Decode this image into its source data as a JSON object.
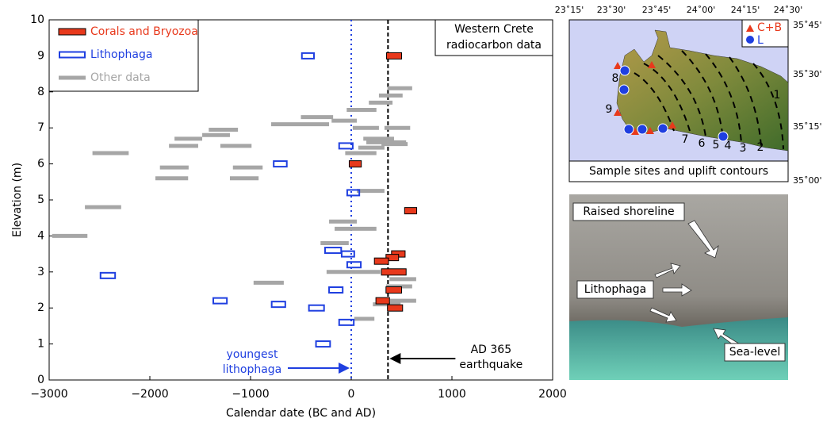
{
  "chart_data": {
    "type": "range",
    "title": [
      "Western Crete",
      "radiocarbon data"
    ],
    "x_label": "Calendar date (BC and AD)",
    "y_label": "Elevation (m)",
    "xlim": [
      -3000,
      2000
    ],
    "xticks": [
      {
        "value": -3000,
        "label": "−3000"
      },
      {
        "value": -2000,
        "label": "−2000"
      },
      {
        "value": -1000,
        "label": "−1000"
      },
      0,
      1000,
      2000
    ],
    "ylim": [
      0,
      10
    ],
    "yticks": [
      0,
      1,
      2,
      3,
      4,
      5,
      6,
      7,
      8,
      9,
      10
    ],
    "legend": "upper left",
    "series": [
      {
        "name": "Corals and Bryozoa",
        "color": "#e8391c",
        "style": "filled",
        "x_start": [
          350,
          -20,
          530,
          400,
          345,
          300,
          230,
          345,
          245,
          360
        ],
        "x_end": [
          500,
          100,
          650,
          535,
          470,
          545,
          370,
          500,
          380,
          510
        ],
        "values": [
          9.0,
          6.0,
          4.7,
          3.5,
          3.4,
          3.0,
          3.3,
          2.5,
          2.2,
          2.0
        ]
      },
      {
        "name": "Lithophaga",
        "color": "#1f3fe0",
        "style": "hollow",
        "x_start": [
          -490,
          -770,
          -120,
          -40,
          -260,
          -95,
          -40,
          -2490,
          -220,
          -1370,
          -790,
          -420,
          -120,
          -350
        ],
        "x_end": [
          -370,
          -640,
          15,
          80,
          -100,
          30,
          95,
          -2345,
          -85,
          -1235,
          -655,
          -270,
          25,
          -210
        ],
        "values": [
          9.0,
          6.0,
          6.5,
          5.2,
          3.6,
          3.5,
          3.2,
          2.9,
          2.5,
          2.2,
          2.1,
          2.0,
          1.6,
          1.0
        ]
      },
      {
        "name": "Other data",
        "color": "#a6a6a6",
        "style": "line",
        "x_start": [
          360,
          275,
          175,
          -45,
          -500,
          -195,
          -795,
          330,
          15,
          -1415,
          -1480,
          -1755,
          120,
          150,
          -1810,
          -1300,
          300,
          70,
          -2570,
          -60,
          -1900,
          -1175,
          -1945,
          -1205,
          55,
          -2645,
          -220,
          -165,
          -2970,
          -305,
          -245,
          -970,
          380,
          345,
          385,
          215,
          30
        ],
        "x_end": [
          605,
          510,
          410,
          250,
          -180,
          55,
          -220,
          585,
          275,
          -1125,
          -1205,
          -1480,
          425,
          545,
          -1520,
          -990,
          560,
          330,
          -2210,
          250,
          -1615,
          -880,
          -1620,
          -920,
          330,
          -2285,
          55,
          250,
          -2620,
          -25,
          290,
          -670,
          645,
          605,
          645,
          490,
          230
        ],
        "values": [
          8.1,
          7.9,
          7.7,
          7.5,
          7.3,
          7.2,
          7.1,
          7.0,
          7.0,
          6.95,
          6.8,
          6.7,
          6.7,
          6.6,
          6.5,
          6.5,
          6.55,
          6.45,
          6.3,
          6.3,
          5.9,
          5.9,
          5.6,
          5.6,
          5.25,
          4.8,
          4.4,
          4.2,
          4.0,
          3.8,
          3.0,
          2.7,
          2.8,
          2.6,
          2.2,
          2.1,
          1.7
        ]
      }
    ],
    "reference_lines": [
      {
        "x": 0,
        "color": "#1f3fe0",
        "style": "dotted",
        "text": [
          "youngest",
          "lithophaga"
        ]
      },
      {
        "x": 365,
        "color": "#000000",
        "style": "dashed",
        "text": [
          "AD 365",
          "earthquake"
        ]
      }
    ]
  },
  "map": {
    "caption": "Sample sites and uplift contours",
    "lon_labels": [
      "23˚15'",
      "23˚30'",
      "23˚45'",
      "24˚00'",
      "24˚15'",
      "24˚30'"
    ],
    "lat_labels": [
      "35˚45'",
      "35˚30'",
      "35˚15'",
      "35˚00'"
    ],
    "legend": [
      "C+B",
      "L"
    ],
    "contour_labels": [
      "1",
      "2",
      "3",
      "4",
      "5",
      "6",
      "7",
      "8",
      "9"
    ]
  },
  "photo": {
    "labels": [
      "Raised shoreline",
      "Lithophaga",
      "Sea-level"
    ]
  }
}
